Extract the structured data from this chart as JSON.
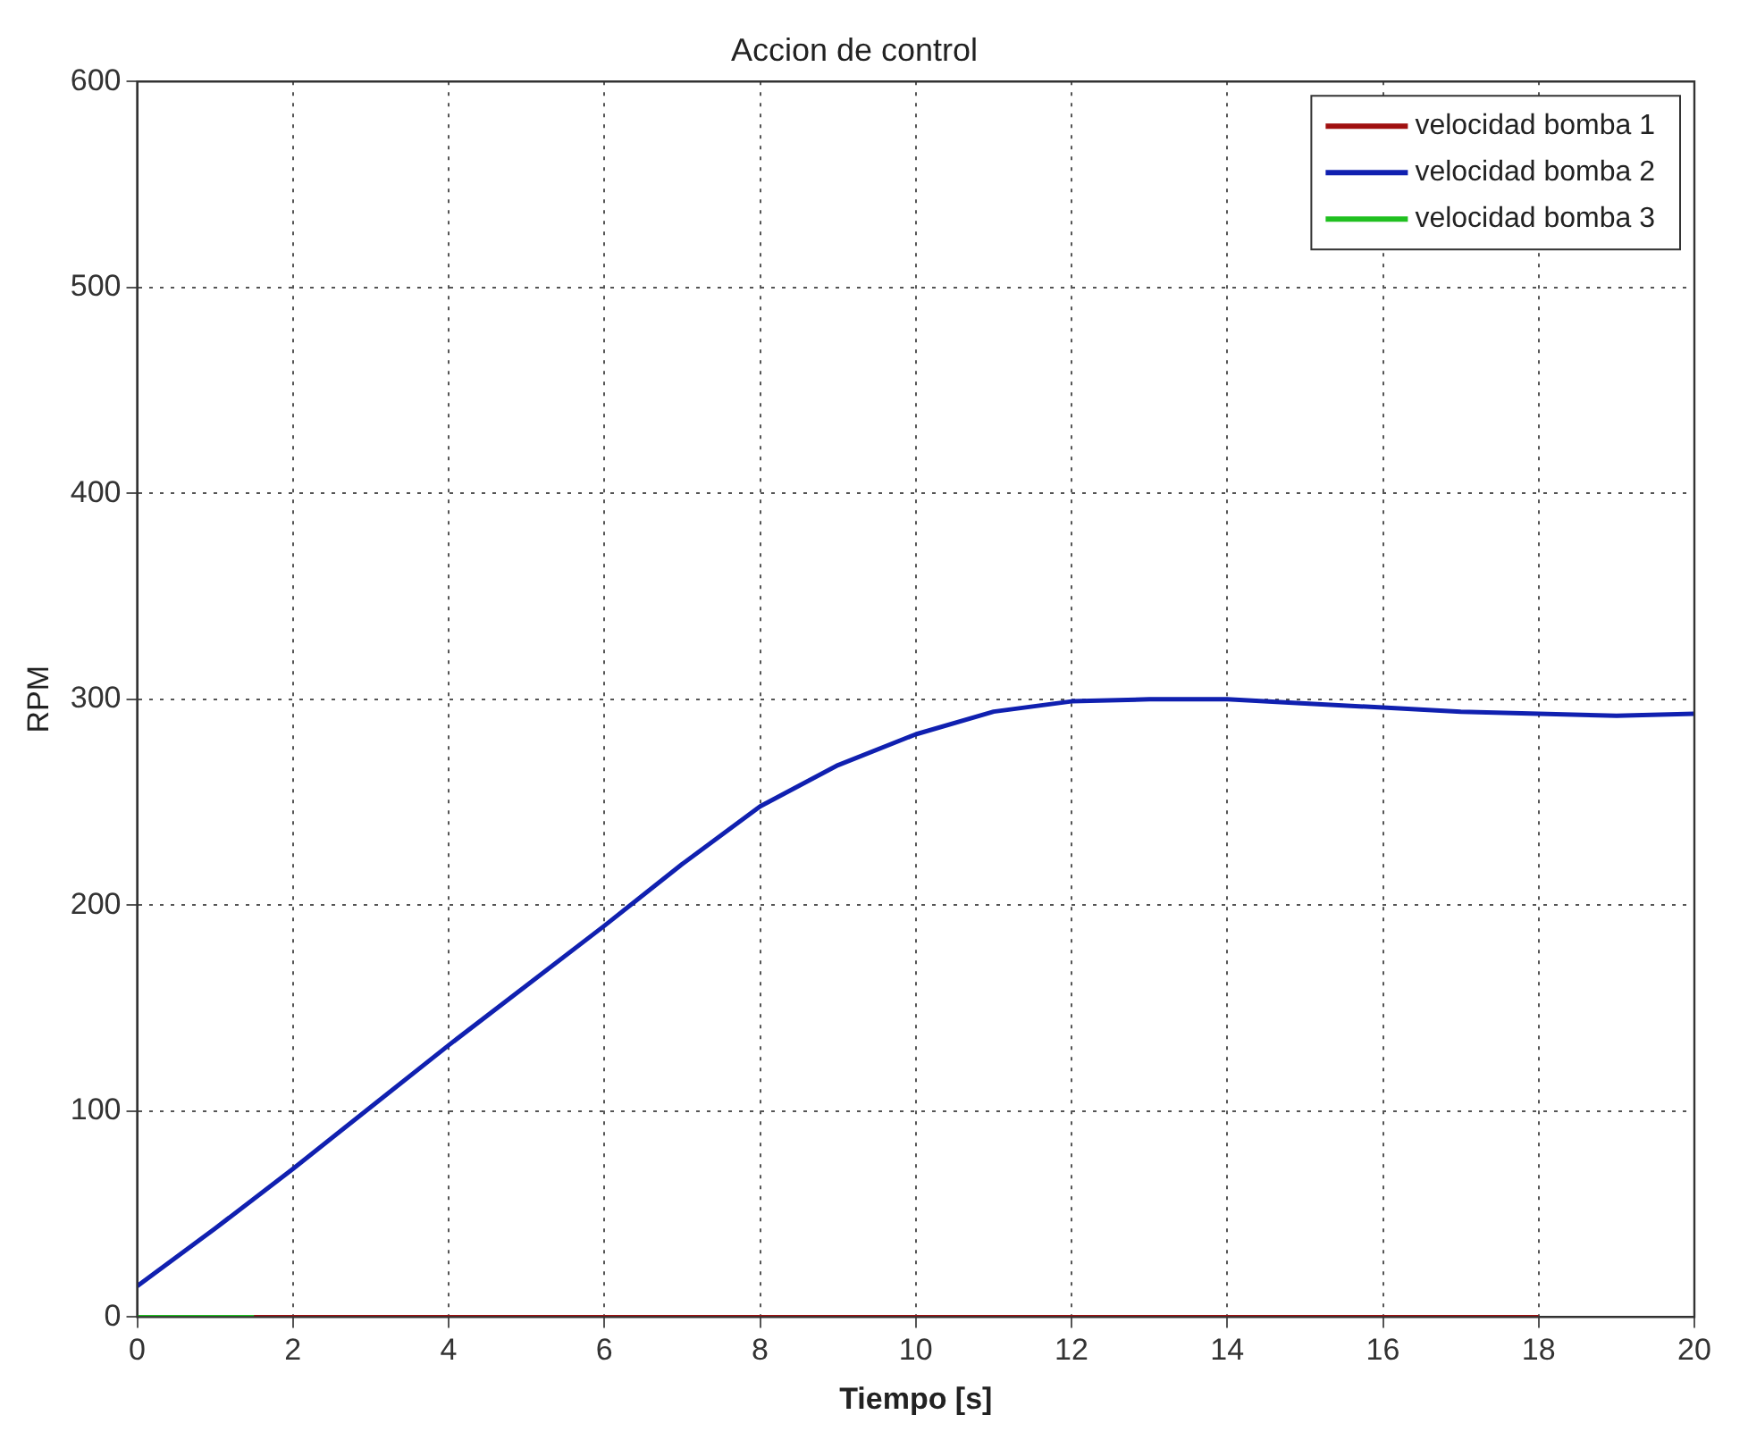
{
  "chart_data": {
    "type": "line",
    "title": "Accion de control",
    "xlabel": "Tiempo [s]",
    "ylabel": "RPM",
    "xlim": [
      0,
      20
    ],
    "xticks": [
      0,
      2,
      4,
      6,
      8,
      10,
      12,
      14,
      16,
      18,
      20
    ],
    "ylim": [
      0,
      600
    ],
    "yticks": [
      0,
      100,
      200,
      300,
      400,
      500,
      600
    ],
    "grid": true,
    "legend": "top right",
    "marker": "none",
    "line_style": "solid",
    "series": [
      {
        "name": "velocidad bomba 1",
        "color": "#a01010",
        "x": [
          0,
          18
        ],
        "values": [
          0,
          0
        ]
      },
      {
        "name": "velocidad bomba 2",
        "color": "#1020b0",
        "x": [
          0,
          1,
          2,
          3,
          4,
          5,
          6,
          7,
          8,
          9,
          10,
          11,
          12,
          13,
          14,
          15,
          16,
          17,
          18,
          19,
          20
        ],
        "values": [
          15,
          43,
          72,
          102,
          132,
          161,
          190,
          220,
          248,
          268,
          283,
          294,
          299,
          300,
          300,
          298,
          296,
          294,
          293,
          292,
          293
        ]
      },
      {
        "name": "velocidad bomba 3",
        "color": "#20c020",
        "x": [
          0,
          1.5
        ],
        "values": [
          0,
          0
        ]
      }
    ]
  }
}
